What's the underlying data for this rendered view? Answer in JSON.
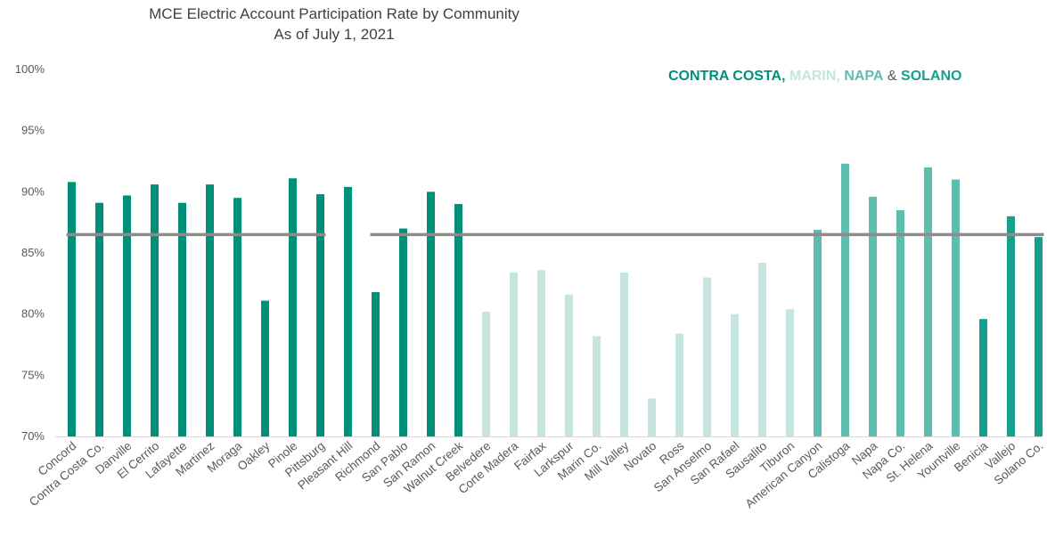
{
  "chart_data": {
    "type": "bar",
    "title": "MCE Electric Account Participation Rate by Community",
    "subtitle": "As of July 1, 2021",
    "xlabel": "",
    "ylabel": "",
    "ylim": [
      70,
      100
    ],
    "yticks": [
      70,
      75,
      80,
      85,
      90,
      95,
      100
    ],
    "ytick_format": "percent",
    "grid": false,
    "legend": {
      "placement": "top-right",
      "parts": [
        {
          "text": "CONTRA COSTA,",
          "color": "#00907A"
        },
        {
          "text": " MARIN,",
          "color": "#C6E5E1"
        },
        {
          "text": " NAPA",
          "color": "#5FBDB0"
        },
        {
          "text": " & ",
          "color": "#595959"
        },
        {
          "text": "SOLANO",
          "color": "#16A08C"
        }
      ]
    },
    "colors": {
      "contra_costa": "#00907A",
      "marin": "#C6E5E1",
      "napa": "#5FBDB0",
      "solano": "#16A08C",
      "reference_line": "#8C8C8C",
      "axis": "#D9D9D9"
    },
    "categories": [
      "Concord",
      "Contra Costa Co.",
      "Danville",
      "El Cerrito",
      "Lafayette",
      "Martinez",
      "Moraga",
      "Oakley",
      "Pinole",
      "Pittsburg",
      "Pleasant Hill",
      "Richmond",
      "San Pablo",
      "San Ramon",
      "Walnut Creek",
      "Belvedere",
      "Corte Madera",
      "Fairfax",
      "Larkspur",
      "Marin Co.",
      "Mill Valley",
      "Novato",
      "Ross",
      "San Anselmo",
      "San Rafael",
      "Sausalito",
      "Tiburon",
      "American Canyon",
      "Calistoga",
      "Napa",
      "Napa Co.",
      "St. Helena",
      "Yountville",
      "Benicia",
      "Vallejo",
      "Solano Co."
    ],
    "values": [
      90.8,
      89.1,
      89.7,
      90.6,
      89.1,
      90.6,
      89.5,
      81.1,
      91.1,
      89.8,
      90.4,
      81.8,
      87.0,
      90.0,
      89.0,
      80.2,
      83.4,
      83.6,
      81.6,
      78.2,
      83.4,
      73.1,
      78.4,
      83.0,
      80.0,
      84.2,
      80.4,
      86.9,
      92.3,
      89.6,
      88.5,
      92.0,
      91.0,
      79.6,
      88.0,
      86.3
    ],
    "groups": [
      "contra_costa",
      "contra_costa",
      "contra_costa",
      "contra_costa",
      "contra_costa",
      "contra_costa",
      "contra_costa",
      "contra_costa",
      "contra_costa",
      "contra_costa",
      "contra_costa",
      "contra_costa",
      "contra_costa",
      "contra_costa",
      "contra_costa",
      "marin",
      "marin",
      "marin",
      "marin",
      "marin",
      "marin",
      "marin",
      "marin",
      "marin",
      "marin",
      "marin",
      "marin",
      "napa",
      "napa",
      "napa",
      "napa",
      "napa",
      "napa",
      "solano",
      "solano",
      "solano"
    ],
    "reference_lines": [
      {
        "value": 86.5,
        "from": "Concord",
        "to": "Pittsburg"
      },
      {
        "value": 86.5,
        "from": "Richmond",
        "to": "Solano Co."
      }
    ]
  }
}
